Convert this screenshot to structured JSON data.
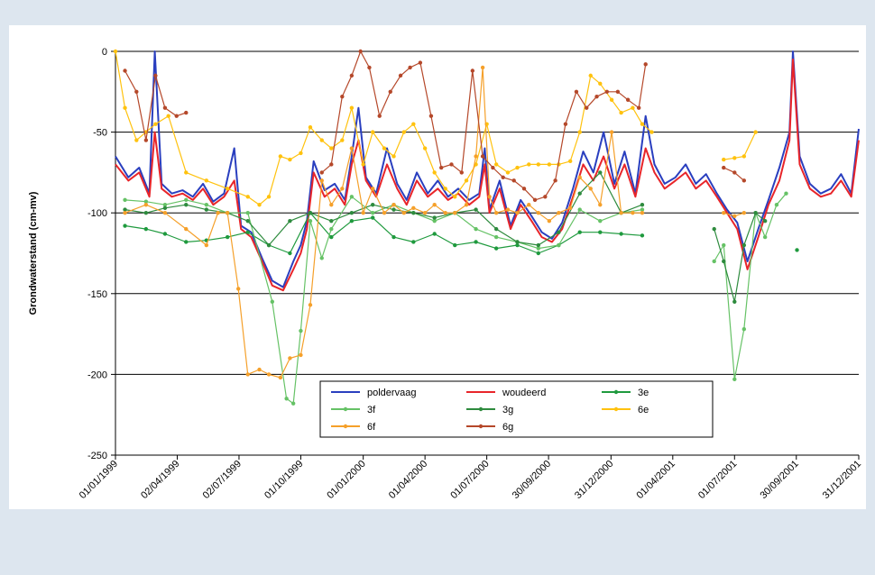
{
  "chart_data": {
    "type": "line",
    "y_label": "Grondwaterstand (cm-mv)",
    "ylim": [
      -250,
      0
    ],
    "yticks": [
      -250,
      -200,
      -150,
      -100,
      -50,
      0
    ],
    "xlim": [
      "01/01/1999",
      "31/12/2001"
    ],
    "xticks": [
      "01/01/1999",
      "02/04/1999",
      "02/07/1999",
      "01/10/1999",
      "01/01/2000",
      "01/04/2000",
      "01/07/2000",
      "30/09/2000",
      "31/12/2000",
      "01/04/2001",
      "01/07/2001",
      "30/09/2001",
      "31/12/2001"
    ],
    "grid": true,
    "legend": "bottom",
    "series": [
      {
        "name": "poldervaag",
        "color": "#2a3fbf",
        "marker": false,
        "x": [
          "01/01/1999",
          "20/01/1999",
          "05/02/1999",
          "20/02/1999",
          "28/02/1999",
          "10/03/1999",
          "25/03/1999",
          "10/04/1999",
          "25/04/1999",
          "10/05/1999",
          "25/05/1999",
          "10/06/1999",
          "25/06/1999",
          "05/07/1999",
          "20/07/1999",
          "05/08/1999",
          "20/08/1999",
          "05/09/1999",
          "20/09/1999",
          "01/10/1999",
          "10/10/1999",
          "20/10/1999",
          "05/11/1999",
          "20/11/1999",
          "05/12/1999",
          "15/12/1999",
          "25/12/1999",
          "05/01/2000",
          "20/01/2000",
          "05/02/2000",
          "20/02/2000",
          "05/03/2000",
          "20/03/2000",
          "05/04/2000",
          "20/04/2000",
          "05/05/2000",
          "20/05/2000",
          "05/06/2000",
          "20/06/2000",
          "28/06/2000",
          "05/07/2000",
          "20/07/2000",
          "05/08/2000",
          "20/08/2000",
          "05/09/2000",
          "20/09/2000",
          "05/10/2000",
          "20/10/2000",
          "05/11/2000",
          "20/11/2000",
          "05/12/2000",
          "20/12/2000",
          "05/01/2001",
          "20/01/2001",
          "05/02/2001",
          "20/02/2001",
          "05/03/2001",
          "20/03/2001",
          "05/04/2001",
          "20/04/2001",
          "05/05/2001",
          "20/05/2001",
          "05/06/2001",
          "20/06/2001",
          "05/07/2001",
          "20/07/2001",
          "05/08/2001",
          "20/08/2001",
          "05/09/2001",
          "20/09/2001",
          "25/09/2001",
          "05/10/2001",
          "20/10/2001",
          "05/11/2001",
          "20/11/2001",
          "05/12/2001",
          "20/12/2001",
          "31/12/2001"
        ],
        "values": [
          -65,
          -78,
          -72,
          -88,
          0,
          -82,
          -88,
          -86,
          -90,
          -82,
          -93,
          -88,
          -60,
          -108,
          -112,
          -128,
          -142,
          -146,
          -130,
          -120,
          -105,
          -68,
          -86,
          -82,
          -92,
          -65,
          -35,
          -78,
          -88,
          -60,
          -82,
          -92,
          -75,
          -88,
          -80,
          -90,
          -85,
          -92,
          -88,
          -60,
          -98,
          -80,
          -108,
          -92,
          -102,
          -112,
          -116,
          -106,
          -85,
          -62,
          -75,
          -50,
          -82,
          -62,
          -88,
          -40,
          -70,
          -82,
          -78,
          -70,
          -82,
          -76,
          -88,
          -98,
          -106,
          -130,
          -110,
          -92,
          -72,
          -50,
          0,
          -65,
          -82,
          -88,
          -85,
          -76,
          -88,
          -48
        ]
      },
      {
        "name": "woudeerd",
        "color": "#e8252a",
        "marker": false,
        "x": [
          "01/01/1999",
          "20/01/1999",
          "05/02/1999",
          "20/02/1999",
          "28/02/1999",
          "10/03/1999",
          "25/03/1999",
          "10/04/1999",
          "25/04/1999",
          "10/05/1999",
          "25/05/1999",
          "10/06/1999",
          "25/06/1999",
          "05/07/1999",
          "20/07/1999",
          "05/08/1999",
          "20/08/1999",
          "05/09/1999",
          "20/09/1999",
          "01/10/1999",
          "10/10/1999",
          "20/10/1999",
          "05/11/1999",
          "20/11/1999",
          "05/12/1999",
          "15/12/1999",
          "25/12/1999",
          "05/01/2000",
          "20/01/2000",
          "05/02/2000",
          "20/02/2000",
          "05/03/2000",
          "20/03/2000",
          "05/04/2000",
          "20/04/2000",
          "05/05/2000",
          "20/05/2000",
          "05/06/2000",
          "20/06/2000",
          "28/06/2000",
          "05/07/2000",
          "20/07/2000",
          "05/08/2000",
          "20/08/2000",
          "05/09/2000",
          "20/09/2000",
          "05/10/2000",
          "20/10/2000",
          "05/11/2000",
          "20/11/2000",
          "05/12/2000",
          "20/12/2000",
          "05/01/2001",
          "20/01/2001",
          "05/02/2001",
          "20/02/2001",
          "05/03/2001",
          "20/03/2001",
          "05/04/2001",
          "20/04/2001",
          "05/05/2001",
          "20/05/2001",
          "05/06/2001",
          "20/06/2001",
          "05/07/2001",
          "20/07/2001",
          "05/08/2001",
          "20/08/2001",
          "05/09/2001",
          "20/09/2001",
          "25/09/2001",
          "05/10/2001",
          "20/10/2001",
          "05/11/2001",
          "20/11/2001",
          "05/12/2001",
          "20/12/2001",
          "31/12/2001"
        ],
        "values": [
          -70,
          -80,
          -75,
          -90,
          -50,
          -85,
          -90,
          -88,
          -92,
          -85,
          -95,
          -90,
          -80,
          -110,
          -115,
          -130,
          -145,
          -148,
          -135,
          -125,
          -110,
          -75,
          -90,
          -85,
          -95,
          -70,
          -55,
          -80,
          -90,
          -70,
          -85,
          -95,
          -80,
          -90,
          -85,
          -92,
          -88,
          -95,
          -90,
          -70,
          -100,
          -85,
          -110,
          -95,
          -105,
          -115,
          -118,
          -110,
          -90,
          -70,
          -80,
          -65,
          -85,
          -70,
          -90,
          -60,
          -75,
          -85,
          -80,
          -75,
          -85,
          -80,
          -90,
          -100,
          -110,
          -135,
          -115,
          -95,
          -80,
          -55,
          -5,
          -70,
          -85,
          -90,
          -88,
          -80,
          -90,
          -55
        ]
      },
      {
        "name": "3e",
        "color": "#1f9a3e",
        "marker": true,
        "x": [
          "15/01/1999",
          "15/02/1999",
          "15/03/1999",
          "15/04/1999",
          "15/05/1999",
          "15/06/1999",
          "15/07/1999",
          "15/08/1999",
          "15/09/1999",
          "15/10/1999",
          "15/11/1999",
          "15/12/1999",
          "15/01/2000",
          "15/02/2000",
          "15/03/2000",
          "15/04/2000",
          "15/05/2000",
          "15/06/2000",
          "15/07/2000",
          "15/08/2000",
          "15/09/2000",
          "15/10/2000",
          "15/11/2000",
          "15/12/2000",
          "15/01/2001",
          "15/02/2001",
          "01/06/2001",
          "01/10/2001"
        ],
        "values": [
          -108,
          -110,
          -113,
          -118,
          -117,
          -115,
          -112,
          -120,
          -125,
          -100,
          -115,
          -105,
          -103,
          -115,
          -118,
          -113,
          -120,
          -118,
          -122,
          -120,
          -125,
          -120,
          -112,
          -112,
          -113,
          -114,
          null,
          -123
        ]
      },
      {
        "name": "3f",
        "color": "#66c266",
        "marker": true,
        "x": [
          "15/01/1999",
          "15/02/1999",
          "15/03/1999",
          "15/04/1999",
          "15/05/1999",
          "15/06/1999",
          "15/07/1999",
          "20/08/1999",
          "10/09/1999",
          "20/09/1999",
          "01/10/1999",
          "15/10/1999",
          "01/11/1999",
          "15/11/1999",
          "15/12/1999",
          "15/01/2000",
          "15/02/2000",
          "15/03/2000",
          "15/04/2000",
          "15/05/2000",
          "15/06/2000",
          "15/07/2000",
          "15/08/2000",
          "15/09/2000",
          "15/10/2000",
          "15/11/2000",
          "15/12/2000",
          "15/01/2001",
          "15/02/2001",
          "01/04/2001",
          "01/06/2001",
          "15/06/2001",
          "01/07/2001",
          "15/07/2001",
          "01/08/2001",
          "15/08/2001",
          "01/09/2001",
          "15/09/2001"
        ],
        "values": [
          -92,
          -93,
          -95,
          -92,
          -95,
          -100,
          -100,
          -155,
          -215,
          -218,
          -173,
          -105,
          -128,
          -110,
          -90,
          -100,
          -95,
          -100,
          -105,
          -100,
          -110,
          -115,
          -118,
          -122,
          -120,
          -98,
          -105,
          -100,
          -98,
          null,
          -130,
          -120,
          -203,
          -172,
          -100,
          -115,
          -95,
          -88
        ]
      },
      {
        "name": "3g",
        "color": "#2e8b3e",
        "marker": true,
        "x": [
          "15/01/1999",
          "15/02/1999",
          "15/03/1999",
          "15/04/1999",
          "15/05/1999",
          "15/06/1999",
          "15/07/1999",
          "15/08/1999",
          "15/09/1999",
          "15/10/1999",
          "15/11/1999",
          "15/12/1999",
          "15/01/2000",
          "15/02/2000",
          "15/03/2000",
          "15/04/2000",
          "15/05/2000",
          "15/06/2000",
          "15/07/2000",
          "15/08/2000",
          "15/09/2000",
          "15/10/2000",
          "15/11/2000",
          "15/12/2000",
          "15/01/2001",
          "15/02/2001",
          "01/04/2001",
          "01/06/2001",
          "15/06/2001",
          "01/07/2001",
          "15/07/2001",
          "01/08/2001",
          "15/08/2001"
        ],
        "values": [
          -98,
          -100,
          -97,
          -95,
          -98,
          -100,
          -105,
          -120,
          -105,
          -100,
          -105,
          -100,
          -95,
          -98,
          -100,
          -103,
          -100,
          -98,
          -110,
          -118,
          -120,
          -112,
          -88,
          -75,
          -100,
          -95,
          null,
          -110,
          -130,
          -155,
          -120,
          -100,
          -105
        ]
      },
      {
        "name": "6e",
        "color": "#ffc20e",
        "marker": true,
        "x": [
          "01/01/1999",
          "15/01/1999",
          "01/02/1999",
          "15/02/1999",
          "01/03/1999",
          "20/03/1999",
          "15/04/1999",
          "15/05/1999",
          "15/06/1999",
          "15/07/1999",
          "01/08/1999",
          "15/08/1999",
          "01/09/1999",
          "15/09/1999",
          "01/10/1999",
          "15/10/1999",
          "01/11/1999",
          "15/11/1999",
          "01/12/1999",
          "15/12/1999",
          "01/01/2000",
          "15/01/2000",
          "01/02/2000",
          "15/02/2000",
          "01/03/2000",
          "15/03/2000",
          "01/04/2000",
          "15/04/2000",
          "01/05/2000",
          "15/05/2000",
          "01/06/2000",
          "15/06/2000",
          "01/07/2000",
          "15/07/2000",
          "01/08/2000",
          "15/08/2000",
          "01/09/2000",
          "15/09/2000",
          "01/10/2000",
          "15/10/2000",
          "01/11/2000",
          "15/11/2000",
          "01/12/2000",
          "15/12/2000",
          "01/01/2001",
          "15/01/2001",
          "01/02/2001",
          "15/02/2001",
          "01/03/2001",
          "01/05/2001",
          "15/06/2001",
          "01/07/2001",
          "15/07/2001",
          "01/08/2001"
        ],
        "values": [
          0,
          -35,
          -55,
          -50,
          -45,
          -40,
          -75,
          -80,
          -85,
          -90,
          -95,
          -90,
          -65,
          -67,
          -63,
          -47,
          -55,
          -60,
          -55,
          -35,
          -70,
          -50,
          -60,
          -65,
          -50,
          -45,
          -60,
          -75,
          -85,
          -90,
          -80,
          -70,
          -45,
          -70,
          -75,
          -72,
          -70,
          -70,
          -70,
          -70,
          -68,
          -50,
          -15,
          -20,
          -30,
          -38,
          -35,
          -45,
          -50,
          null,
          -67,
          -66,
          -65,
          -50
        ]
      },
      {
        "name": "6f",
        "color": "#f5a02a",
        "marker": true,
        "x": [
          "15/01/1999",
          "15/02/1999",
          "15/03/1999",
          "15/04/1999",
          "15/05/1999",
          "01/06/1999",
          "15/06/1999",
          "01/07/1999",
          "15/07/1999",
          "01/08/1999",
          "15/08/1999",
          "01/09/1999",
          "15/09/1999",
          "01/10/1999",
          "15/10/1999",
          "01/11/1999",
          "15/11/1999",
          "01/12/1999",
          "15/12/1999",
          "01/01/2000",
          "15/01/2000",
          "01/02/2000",
          "15/02/2000",
          "01/03/2000",
          "15/03/2000",
          "01/04/2000",
          "15/04/2000",
          "01/05/2000",
          "15/05/2000",
          "01/06/2000",
          "15/06/2000",
          "25/06/2000",
          "05/07/2000",
          "15/07/2000",
          "01/08/2000",
          "15/08/2000",
          "01/09/2000",
          "15/09/2000",
          "01/10/2000",
          "15/10/2000",
          "01/11/2000",
          "15/11/2000",
          "01/12/2000",
          "15/12/2000",
          "01/01/2001",
          "15/01/2001",
          "01/02/2001",
          "15/02/2001",
          "01/04/2001",
          "15/06/2001",
          "01/07/2001",
          "15/07/2001"
        ],
        "values": [
          -100,
          -95,
          -100,
          -110,
          -120,
          -100,
          -100,
          -147,
          -200,
          -197,
          -200,
          -202,
          -190,
          -188,
          -157,
          -80,
          -95,
          -85,
          -60,
          -100,
          -85,
          -100,
          -95,
          -100,
          -97,
          -100,
          -95,
          -100,
          -100,
          -95,
          -65,
          -10,
          -90,
          -100,
          -98,
          -100,
          -95,
          -100,
          -105,
          -100,
          -97,
          -78,
          -85,
          -95,
          -50,
          -100,
          -100,
          -100,
          null,
          -100,
          -102,
          -100
        ]
      },
      {
        "name": "6g",
        "color": "#b5482a",
        "marker": true,
        "x": [
          "15/01/1999",
          "01/02/1999",
          "15/02/1999",
          "01/03/1999",
          "15/03/1999",
          "01/04/1999",
          "15/04/1999",
          "01/07/1999",
          "01/11/1999",
          "15/11/1999",
          "01/12/1999",
          "15/12/1999",
          "28/12/1999",
          "10/01/2000",
          "25/01/2000",
          "10/02/2000",
          "25/02/2000",
          "10/03/2000",
          "25/03/2000",
          "10/04/2000",
          "25/04/2000",
          "10/05/2000",
          "25/05/2000",
          "10/06/2000",
          "25/06/2000",
          "10/07/2000",
          "25/07/2000",
          "10/08/2000",
          "25/08/2000",
          "10/09/2000",
          "25/09/2000",
          "10/10/2000",
          "25/10/2000",
          "10/11/2000",
          "25/11/2000",
          "10/12/2000",
          "25/12/2000",
          "10/01/2001",
          "25/01/2001",
          "10/02/2001",
          "20/02/2001",
          "01/04/2001",
          "15/06/2001",
          "01/07/2001",
          "15/07/2001"
        ],
        "values": [
          -12,
          -25,
          -55,
          -15,
          -35,
          -40,
          -38,
          null,
          -75,
          -70,
          -28,
          -15,
          0,
          -10,
          -40,
          -25,
          -15,
          -10,
          -7,
          -40,
          -72,
          -70,
          -75,
          -12,
          -65,
          -72,
          -78,
          -80,
          -85,
          -92,
          -90,
          -80,
          -45,
          -25,
          -35,
          -28,
          -25,
          -25,
          -30,
          -35,
          -8,
          null,
          -72,
          -75,
          -80
        ]
      }
    ]
  }
}
